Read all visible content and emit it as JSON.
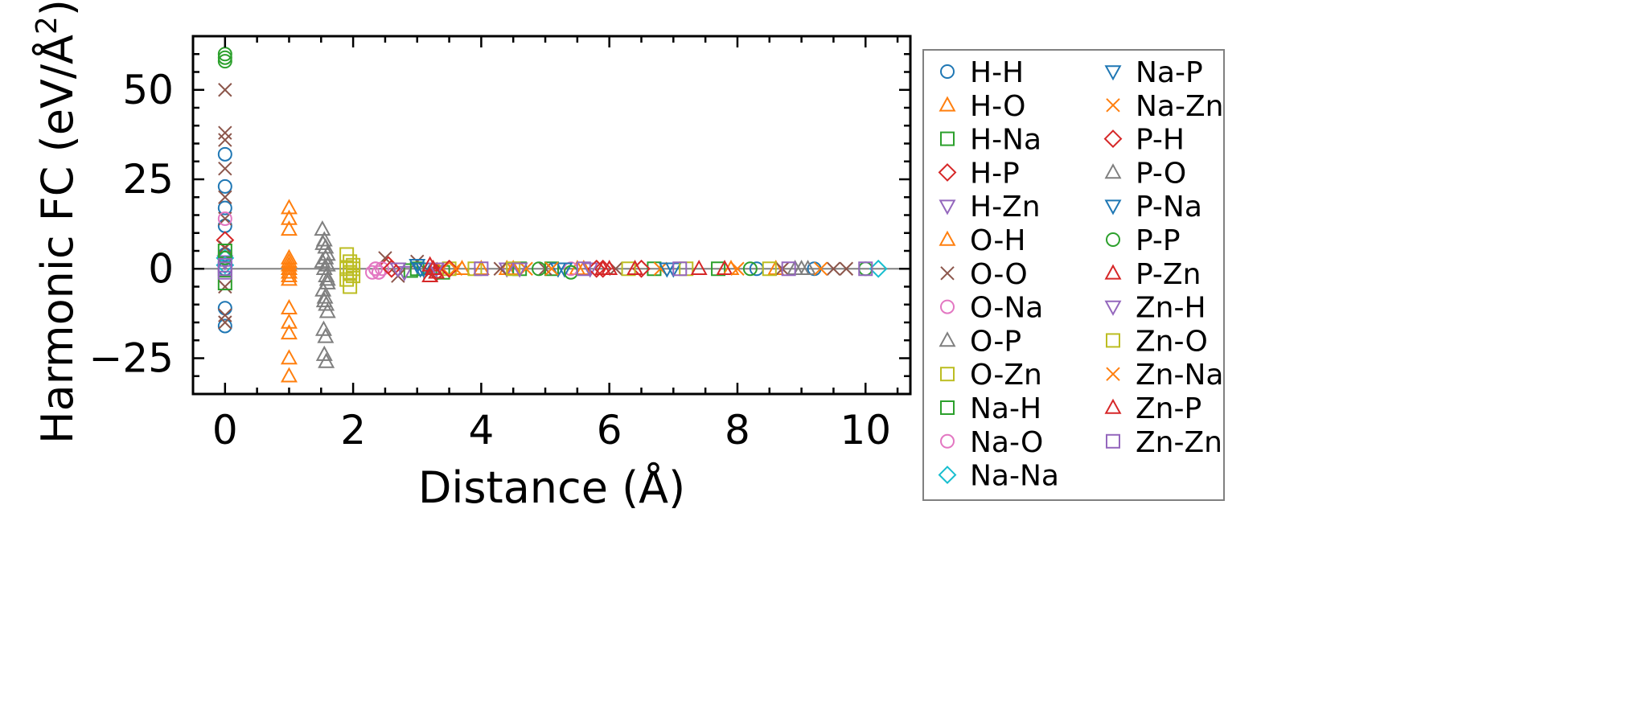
{
  "chart_data": {
    "type": "scatter",
    "title": "",
    "xlabel": "Distance (Å)",
    "ylabel": "Harmonic FC (eV/Å²)",
    "ylabel_parts": {
      "main": "Harmonic FC (eV/Å",
      "sup": "2",
      "close": ")"
    },
    "xlim": [
      -0.5,
      10.7
    ],
    "ylim": [
      -35,
      65
    ],
    "xticks": [
      0,
      2,
      4,
      6,
      8,
      10
    ],
    "xtick_labels": [
      "0",
      "2",
      "4",
      "6",
      "8",
      "10"
    ],
    "yticks": [
      -25,
      0,
      25,
      50
    ],
    "ytick_labels": [
      "−25",
      "0",
      "25",
      "50"
    ],
    "zero_line": true,
    "grid": false,
    "legend_position": "outside-right",
    "series": [
      {
        "name": "H-H",
        "marker": "circle",
        "color": "#1f77b4",
        "x": [
          0,
          0,
          0,
          0,
          0,
          0,
          0,
          0,
          8.3,
          9.2
        ],
        "y": [
          32,
          23,
          17,
          12,
          4,
          -11,
          -16,
          0,
          0,
          0
        ]
      },
      {
        "name": "H-O",
        "marker": "triangle-up",
        "color": "#ff7f0e",
        "x": [
          1.0,
          1.0,
          1.0,
          1.0,
          1.0,
          1.0,
          1.0,
          1.0,
          1.0,
          1.0,
          1.0,
          1.0,
          1.0,
          4.0,
          4.4,
          5.6
        ],
        "y": [
          17,
          14,
          11,
          3,
          1,
          -1,
          -3,
          -11,
          -15,
          -18,
          -25,
          -30,
          0,
          0,
          0,
          0
        ]
      },
      {
        "name": "H-Na",
        "marker": "square",
        "color": "#2ca02c",
        "x": [
          0,
          2.9,
          4.6,
          5.1,
          6.7,
          7.7
        ],
        "y": [
          0,
          -0.5,
          0,
          0,
          0,
          0
        ]
      },
      {
        "name": "H-P",
        "marker": "diamond",
        "color": "#d62728",
        "x": [
          0,
          2.55,
          3.3,
          5.9,
          6.5
        ],
        "y": [
          8,
          1,
          -1,
          0,
          0
        ]
      },
      {
        "name": "H-Zn",
        "marker": "triangle-down",
        "color": "#9467bd",
        "x": [
          0,
          2.8,
          3.3,
          4.4,
          5.7
        ],
        "y": [
          2,
          -1,
          0,
          0,
          0
        ]
      },
      {
        "name": "O-H",
        "marker": "triangle-up",
        "color": "#ff7f0e",
        "x": [
          1.0,
          1.0,
          1.0,
          1.0,
          3.7,
          4.5,
          5.5,
          7.9,
          8.6
        ],
        "y": [
          2,
          0,
          -1,
          -2,
          0,
          0,
          0,
          0,
          0
        ]
      },
      {
        "name": "O-O",
        "marker": "x",
        "color": "#8c564b",
        "x": [
          0,
          0,
          0,
          0,
          0,
          0,
          0,
          0,
          0,
          0,
          2.5,
          2.7,
          3.0,
          3.2,
          4.3,
          5.0,
          6.1,
          8.7,
          9.5,
          9.7
        ],
        "y": [
          50,
          38,
          36,
          28,
          20,
          14,
          6,
          -5,
          -13,
          -15,
          3,
          -2,
          2,
          -1,
          0,
          0,
          0,
          0,
          0,
          0
        ]
      },
      {
        "name": "O-Na",
        "marker": "circle",
        "color": "#e377c2",
        "x": [
          0,
          2.3,
          2.35,
          2.4,
          5.4
        ],
        "y": [
          14,
          -1,
          0,
          -1,
          0
        ]
      },
      {
        "name": "O-P",
        "marker": "triangle-up",
        "color": "#7f7f7f",
        "x": [
          1.52,
          1.55,
          1.57,
          1.6,
          1.52,
          1.55,
          1.58,
          1.6,
          1.53,
          1.56,
          1.58,
          1.6,
          1.54,
          1.57,
          1.55,
          1.58,
          1.6,
          8.9,
          9.1
        ],
        "y": [
          11,
          8,
          6,
          4,
          2,
          0,
          -2,
          -4,
          -6,
          -8,
          -10,
          -12,
          -17,
          -19,
          -24,
          -26,
          1,
          0,
          0
        ]
      },
      {
        "name": "O-Zn",
        "marker": "square",
        "color": "#bcbd22",
        "x": [
          1.9,
          1.95,
          2.0,
          1.9,
          1.95,
          2.0,
          1.9,
          1.95,
          3.5,
          4.5,
          6.3,
          8.5
        ],
        "y": [
          4,
          2,
          1,
          0,
          -1,
          -2,
          -3,
          -5,
          0,
          0,
          0,
          0
        ]
      },
      {
        "name": "Na-H",
        "marker": "square",
        "color": "#2ca02c",
        "x": [
          0,
          0,
          3.0,
          3.4
        ],
        "y": [
          5,
          -4,
          0,
          -1
        ]
      },
      {
        "name": "Na-O",
        "marker": "circle",
        "color": "#e377c2",
        "x": [
          2.35,
          2.4,
          2.45
        ],
        "y": [
          0,
          -1,
          0
        ]
      },
      {
        "name": "Na-Na",
        "marker": "diamond",
        "color": "#17becf",
        "x": [
          0,
          0,
          10.2
        ],
        "y": [
          3,
          1,
          0
        ]
      },
      {
        "name": "Na-P",
        "marker": "triangle-down",
        "color": "#1f77b4",
        "x": [
          3.0,
          3.1,
          5.3,
          7.0
        ],
        "y": [
          1,
          0,
          0,
          0
        ]
      },
      {
        "name": "Na-Zn",
        "marker": "x",
        "color": "#ff7f0e",
        "x": [
          3.4,
          4.7,
          6.8,
          9.3
        ],
        "y": [
          0,
          0,
          0,
          0
        ]
      },
      {
        "name": "P-H",
        "marker": "diamond",
        "color": "#d62728",
        "x": [
          2.6,
          3.5,
          5.8
        ],
        "y": [
          0,
          0,
          0
        ]
      },
      {
        "name": "P-O",
        "marker": "triangle-up",
        "color": "#7f7f7f",
        "x": [
          1.53,
          1.57,
          1.6,
          1.55,
          9.0
        ],
        "y": [
          7,
          3,
          -3,
          -9,
          0
        ]
      },
      {
        "name": "P-Na",
        "marker": "triangle-down",
        "color": "#1f77b4",
        "x": [
          3.05,
          5.2,
          6.9
        ],
        "y": [
          0,
          0,
          0
        ]
      },
      {
        "name": "P-P",
        "marker": "circle",
        "color": "#2ca02c",
        "x": [
          0,
          0,
          0,
          0,
          4.9,
          5.4,
          8.2,
          10.0
        ],
        "y": [
          60,
          59,
          58,
          3,
          0,
          -1,
          0,
          0
        ]
      },
      {
        "name": "P-Zn",
        "marker": "triangle-up",
        "color": "#d62728",
        "x": [
          3.2,
          3.25,
          3.3,
          3.2,
          5.9,
          6.4,
          7.8
        ],
        "y": [
          1,
          0,
          -1,
          -2,
          0,
          0,
          0
        ]
      },
      {
        "name": "Zn-H",
        "marker": "triangle-down",
        "color": "#9467bd",
        "x": [
          2.7,
          3.3,
          4.6
        ],
        "y": [
          0,
          0,
          0
        ]
      },
      {
        "name": "Zn-O",
        "marker": "square",
        "color": "#bcbd22",
        "x": [
          1.95,
          2.0,
          3.9,
          7.2
        ],
        "y": [
          -1,
          0,
          0,
          0
        ]
      },
      {
        "name": "Zn-Na",
        "marker": "x",
        "color": "#ff7f0e",
        "x": [
          3.6,
          5.1,
          8.0
        ],
        "y": [
          0,
          0,
          0
        ]
      },
      {
        "name": "Zn-P",
        "marker": "triangle-up",
        "color": "#d62728",
        "x": [
          3.25,
          6.0,
          7.4
        ],
        "y": [
          0,
          0,
          0
        ]
      },
      {
        "name": "Zn-Zn",
        "marker": "square",
        "color": "#9467bd",
        "x": [
          0,
          0,
          0,
          4.0,
          5.6,
          7.1,
          8.8,
          10.0
        ],
        "y": [
          0,
          -1,
          1,
          0,
          0,
          0,
          0,
          0
        ]
      }
    ]
  }
}
